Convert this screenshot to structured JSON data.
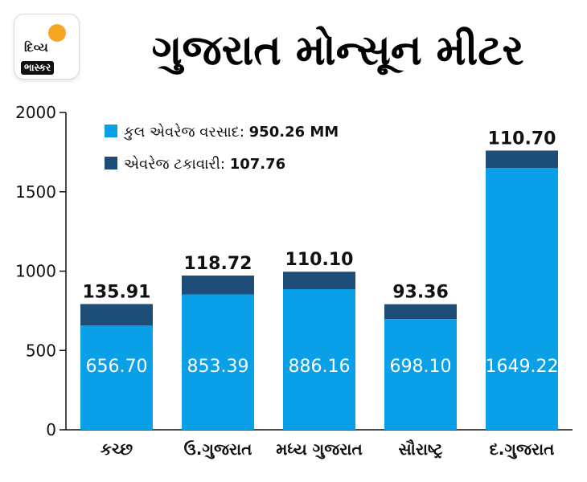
{
  "header": {
    "title": "ગુજરાત મોન્સૂન મીટર",
    "logo_line1": "દિવ્ય",
    "logo_line2": "ભાસ્કર"
  },
  "legend": {
    "rain_label": "કુલ એવરેજ વરસાદ: ",
    "rain_value": "950.26 MM",
    "pct_label": "એવરેજ ટકાવારી: ",
    "pct_value": "107.76"
  },
  "chart_data": {
    "type": "bar",
    "stacked": true,
    "categories": [
      "કચ્છ",
      "ઉ.ગુજરાત",
      "મધ્ય ગુજરાત",
      "સૌરાષ્ટ્ર",
      "દ.ગુજરાત"
    ],
    "series": [
      {
        "name": "કુલ એવરેજ વરસાદ",
        "values": [
          656.7,
          853.39,
          886.16,
          698.1,
          1649.22
        ],
        "labels": [
          "656.70",
          "853.39",
          "886.16",
          "698.10",
          "1649.22"
        ],
        "color": "#0aa0e8"
      },
      {
        "name": "એવરેજ ટકાવારી",
        "values": [
          135.91,
          118.72,
          110.1,
          93.36,
          110.7
        ],
        "labels": [
          "135.91",
          "118.72",
          "110.10",
          "93.36",
          "110.70"
        ],
        "color": "#1e4d78"
      }
    ],
    "ylim": [
      0,
      2000
    ],
    "yticks": [
      "0",
      "500",
      "1000",
      "1500",
      "2000"
    ],
    "grid": false
  }
}
